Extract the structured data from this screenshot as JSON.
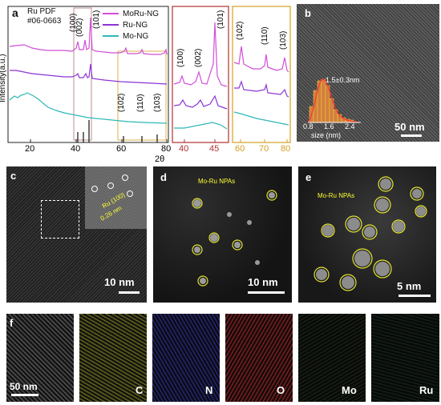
{
  "panel_a": {
    "letter": "a",
    "reference": [
      "Ru PDF",
      "#06-0663"
    ],
    "legend": [
      {
        "name": "MoRu-NG",
        "color": "#d14fd8"
      },
      {
        "name": "Ru-NG",
        "color": "#8a34d8"
      },
      {
        "name": "Mo-NG",
        "color": "#2fb8b8"
      }
    ],
    "ylabel": "Intensity(a.u.)",
    "xlabel": "2θ",
    "ticks_main": [
      "20",
      "40",
      "60",
      "80"
    ],
    "ticks_zoom1": [
      "40",
      "45"
    ],
    "ticks_zoom2": [
      "60",
      "70",
      "80"
    ],
    "peaks_main_top": [
      "(100)",
      "(002)",
      "(101)"
    ],
    "peaks_main_low": [
      "(102)",
      "(110)",
      "(103)"
    ],
    "peaks_zoom1": [
      "(100)",
      "(002)",
      "(101)"
    ],
    "peaks_zoom2": [
      "(102)",
      "(110)",
      "(103)"
    ],
    "colors": {
      "zoom1_frame": "#b03030",
      "zoom2_frame": "#d4a020",
      "axis_ticks_zoom1": "#b03030",
      "axis_ticks_zoom2": "#d4a020"
    }
  },
  "panel_b": {
    "letter": "b",
    "inset_value": "1.5±0.3nm",
    "inset_ticks": [
      "0.8",
      "1.6",
      "2.4"
    ],
    "inset_xlabel": "size (nm)",
    "scale": "50 nm"
  },
  "panel_c": {
    "letter": "c",
    "inset_plane": "Ru (100)",
    "inset_spacing": "0.26 nm",
    "scale": "10 nm"
  },
  "panel_d": {
    "letter": "d",
    "label": "Mo-Ru NPAs",
    "scale": "10 nm"
  },
  "panel_e": {
    "letter": "e",
    "label": "Mo-Ru NPAs",
    "scale": "5 nm"
  },
  "panel_f": {
    "letter": "f",
    "scale": "50 nm",
    "maps": [
      {
        "element": "",
        "color": "#ffffff"
      },
      {
        "element": "C",
        "color": "#e0e040"
      },
      {
        "element": "N",
        "color": "#3040ff"
      },
      {
        "element": "O",
        "color": "#ff3030"
      },
      {
        "element": "Mo",
        "color": "#70c040"
      },
      {
        "element": "Ru",
        "color": "#40c070"
      }
    ]
  }
}
